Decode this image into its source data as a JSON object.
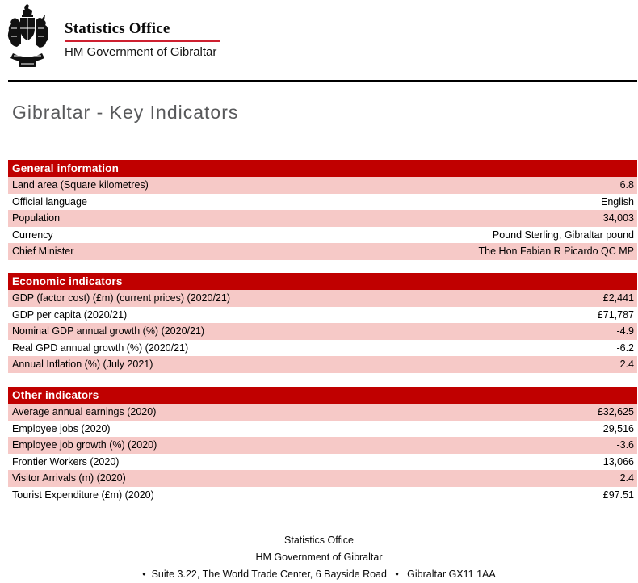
{
  "colors": {
    "table_header_bg": "#C00000",
    "table_alt_row_bg": "#F6C9C7",
    "brand_underline": "#CE2030",
    "title_text": "#57585A",
    "top_rule": "#000000"
  },
  "header": {
    "crest_icon": "royal-coat-of-arms",
    "org_name": "Statistics Office",
    "gov_name": "HM Government of Gibraltar"
  },
  "page": {
    "title": "Gibraltar - Key Indicators"
  },
  "tables": [
    {
      "title": "General information",
      "rows": [
        {
          "label": "Land area (Square kilometres)",
          "value": "6.8"
        },
        {
          "label": "Official language",
          "value": "English"
        },
        {
          "label": "Population",
          "value": "34,003"
        },
        {
          "label": "Currency",
          "value": "Pound Sterling, Gibraltar pound"
        },
        {
          "label": "Chief Minister",
          "value": "The Hon Fabian R Picardo QC MP"
        }
      ]
    },
    {
      "title": "Economic indicators",
      "rows": [
        {
          "label": "GDP (factor cost) (£m) (current prices) (2020/21)",
          "value": "£2,441"
        },
        {
          "label": "GDP per capita (2020/21)",
          "value": "£71,787"
        },
        {
          "label": "Nominal GDP annual growth (%) (2020/21)",
          "value": "-4.9"
        },
        {
          "label": "Real GPD annual growth (%) (2020/21)",
          "value": "-6.2"
        },
        {
          "label": "Annual Inflation (%) (July 2021)",
          "value": "2.4"
        }
      ]
    },
    {
      "title": "Other indicators",
      "rows": [
        {
          "label": "Average annual earnings (2020)",
          "value": "£32,625"
        },
        {
          "label": "Employee jobs (2020)",
          "value": "29,516"
        },
        {
          "label": "Employee job growth (%) (2020)",
          "value": "-3.6"
        },
        {
          "label": "Frontier Workers (2020)",
          "value": "13,066"
        },
        {
          "label": "Visitor Arrivals (m) (2020)",
          "value": "2.4"
        },
        {
          "label": "Tourist Expenditure (£m) (2020)",
          "value": "£97.51"
        }
      ]
    }
  ],
  "footer": {
    "line1": "Statistics Office",
    "line2": "HM Government of Gibraltar",
    "line3": "•  Suite 3.22, The World Trade Center, 6 Bayside Road   •   Gibraltar GX11 1AA"
  }
}
